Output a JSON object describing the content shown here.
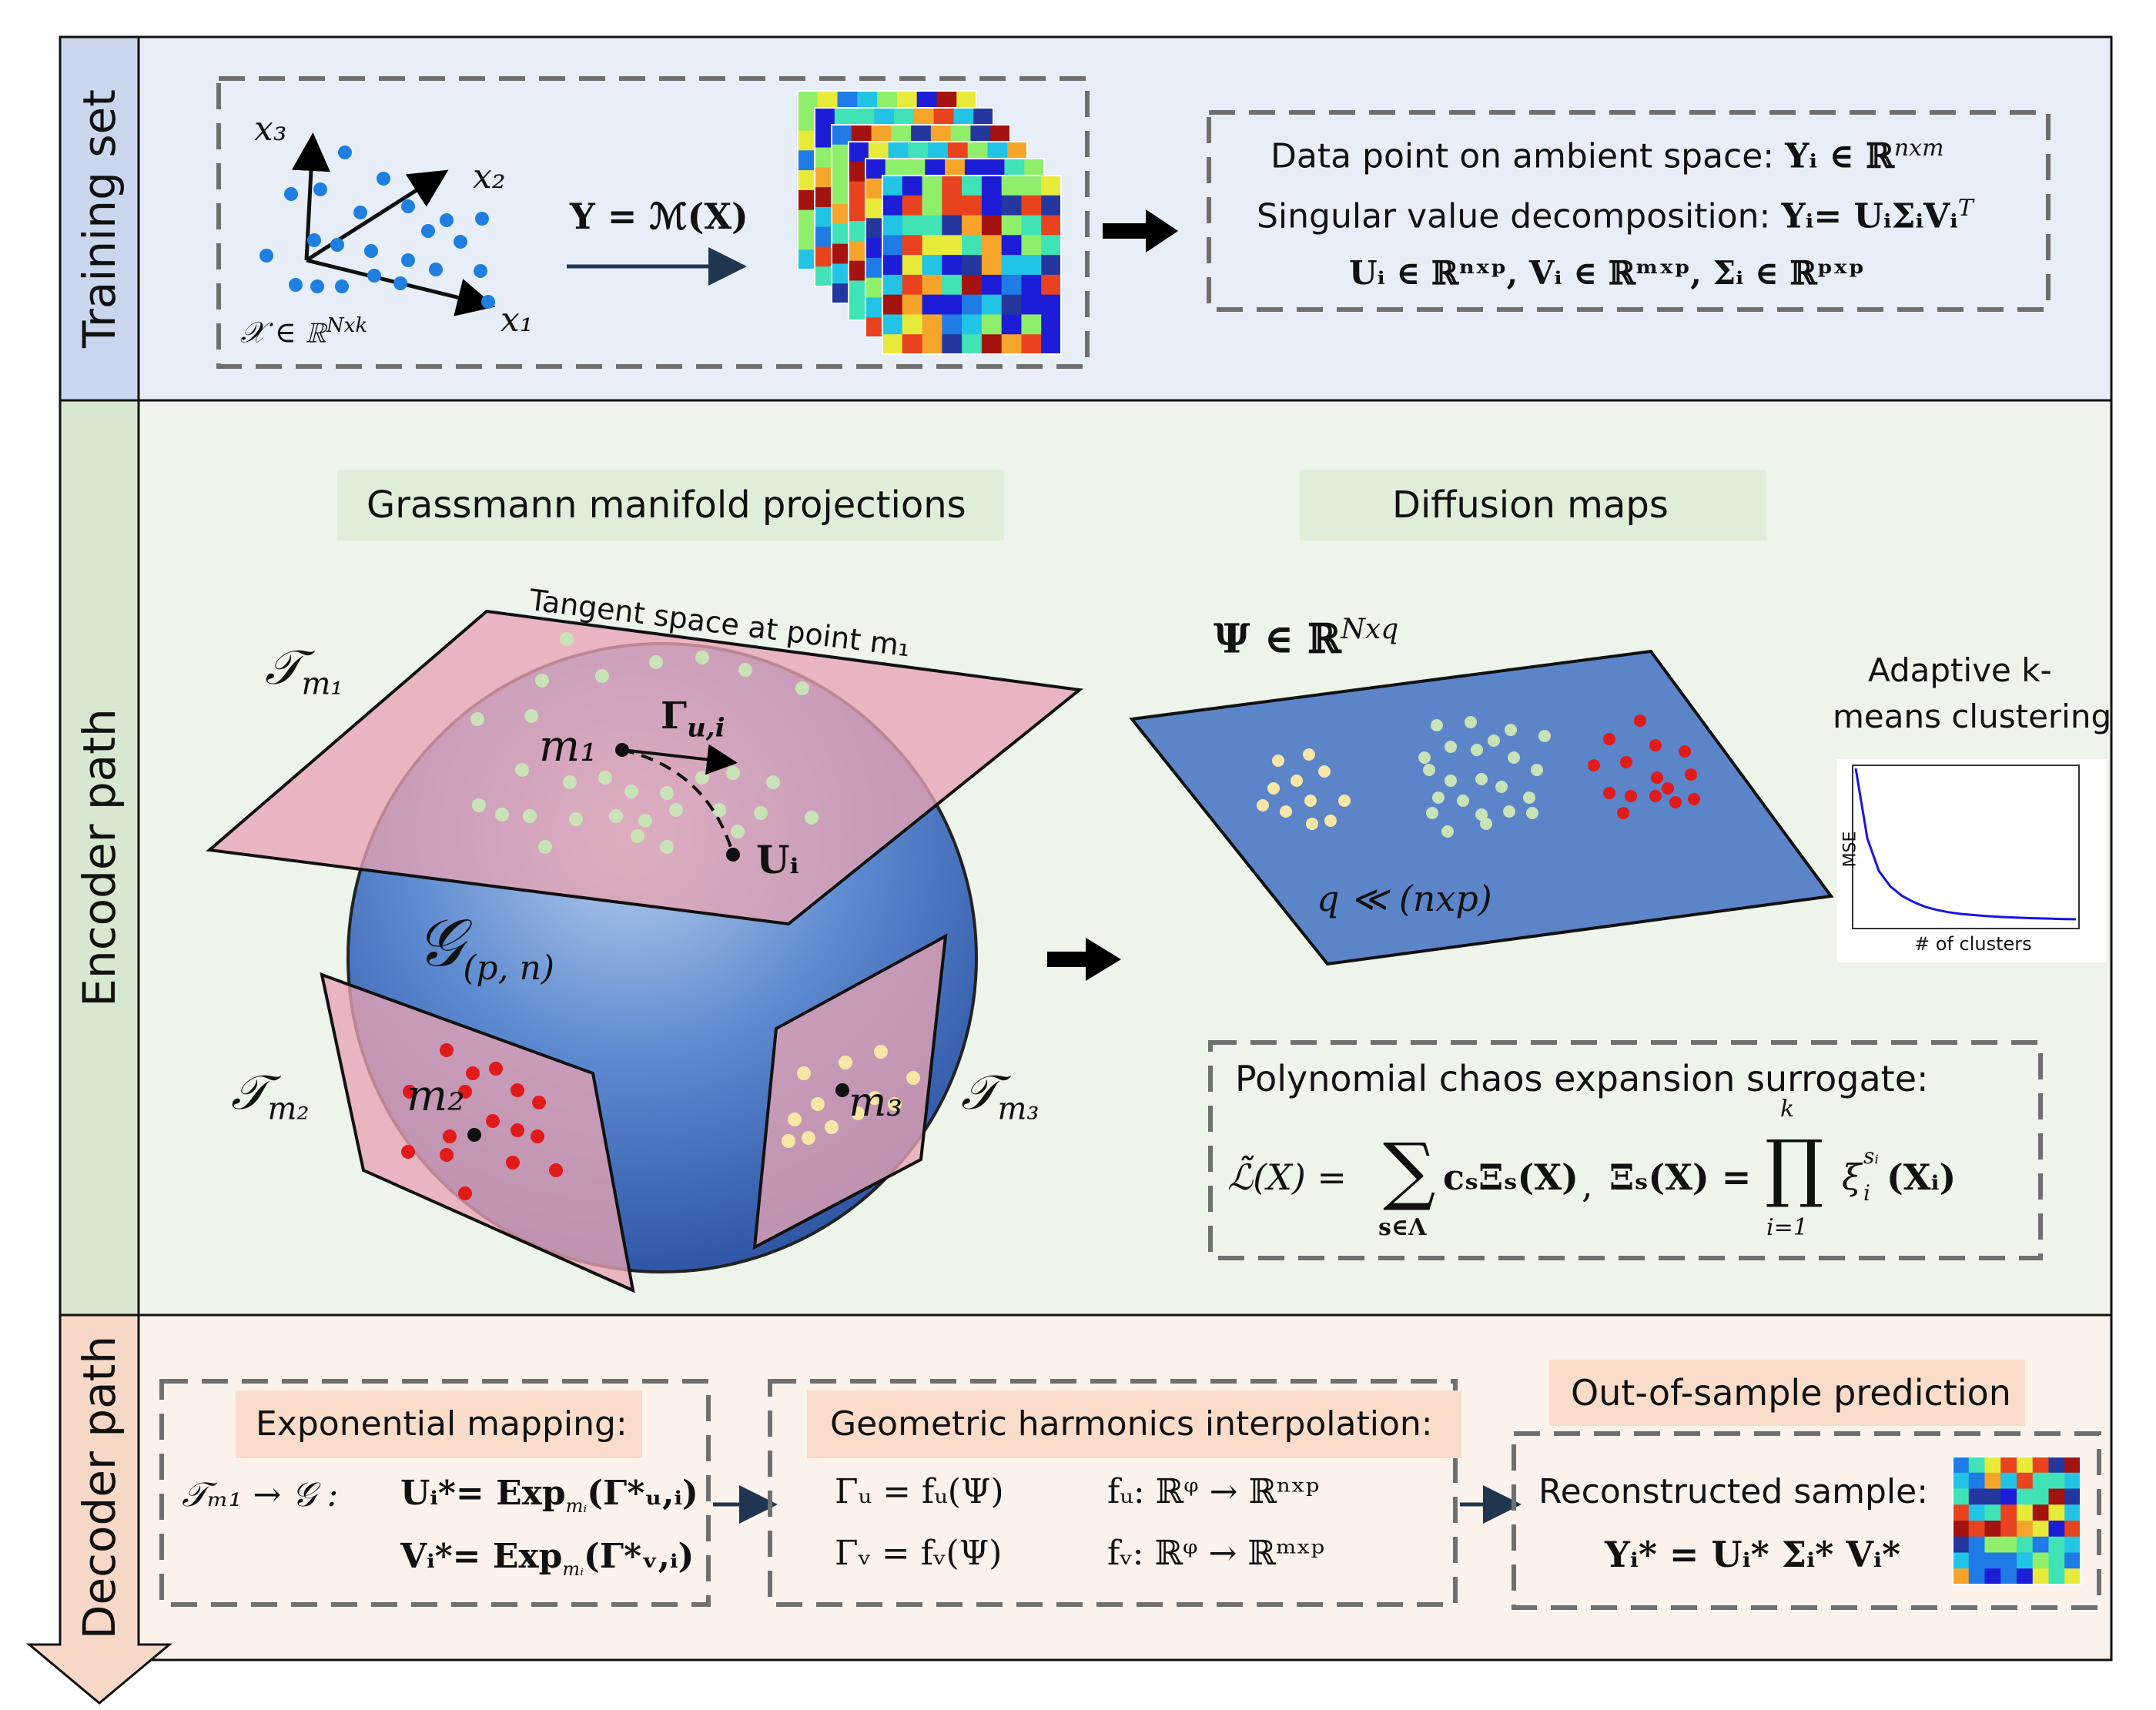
{
  "sections": {
    "training": {
      "label": "Training set",
      "axes": {
        "x3": "x₃",
        "x2": "x₂",
        "x1": "x₁"
      },
      "domain": "𝒳 ∈ ℝ",
      "domain_sup": "Nxk",
      "mapping": "Y = ℳ(X)",
      "svd_line1": "Data point on ambient space:",
      "svd_line1_math": "Yᵢ ∈ ℝ",
      "svd_line1_sup": "nxm",
      "svd_line2": "Singular value decomposition:",
      "svd_line2_math": "Yᵢ= UᵢΣᵢVᵢ",
      "svd_line2_sup": "T",
      "svd_line3": "Uᵢ ∈ ℝⁿˣᵖ, Vᵢ ∈ ℝᵐˣᵖ, Σᵢ ∈ ℝᵖˣᵖ"
    },
    "encoder": {
      "label": "Encoder path",
      "grassmann_title": "Grassmann manifold projections",
      "diffusion_title": "Diffusion maps",
      "tangent_caption": "Tangent space at point m₁",
      "tm1": "𝒯",
      "tm1_sub": "m₁",
      "tm2_sub": "m₂",
      "tm3_sub": "m₃",
      "m1": "m₁",
      "m2": "m₂",
      "m3": "m₃",
      "gamma": "Γ",
      "gamma_sub": "u,i",
      "Ui": "Uᵢ",
      "G": "𝒢",
      "G_sub": "(p, n)",
      "psi": "Ψ ∈ ℝ",
      "psi_sup": "Nxq",
      "q_rel": "q  ≪ (nxp)",
      "kmeans_title_1": "Adaptive k-",
      "kmeans_title_2": "means clustering",
      "kmeans_ylabel": "MSE",
      "kmeans_xlabel": "# of clusters",
      "pce_title": "Polynomial chaos expansion surrogate:",
      "pce_lhs": "ℒ̃(X) =",
      "pce_sum": "∑",
      "pce_sum_sub": "s∈Λ",
      "pce_term": "cₛΞₛ(X)",
      "pce_comma": ",",
      "pce_xi": "Ξₛ(X) =",
      "pce_prod": "∏",
      "pce_prod_top": "k",
      "pce_prod_bot": "i=1",
      "pce_factor": "ξ",
      "pce_factor_sup": "sᵢ",
      "pce_factor_sub": "i",
      "pce_factor_arg": "(Xᵢ)"
    },
    "decoder": {
      "label": "Decoder path",
      "exp_title": "Exponential mapping:",
      "exp_prefix": "𝒯ₘ₁ → 𝒢 :",
      "exp_u": "Uᵢ*= Exp",
      "exp_u_arg": "(Γ*ᵤ,ᵢ)",
      "exp_v": "Vᵢ*= Exp",
      "exp_v_arg": "(Γ*ᵥ,ᵢ)",
      "exp_sub": "mᵢ",
      "gh_title": "Geometric harmonics interpolation:",
      "gh_u": "Γᵤ = fᵤ(Ψ)",
      "gh_v": "Γᵥ = fᵥ(Ψ)",
      "gh_fu": "fᵤ: ℝᵠ → ℝⁿˣᵖ",
      "gh_fv": "fᵥ: ℝᵠ → ℝᵐˣᵖ",
      "oos_title": "Out-of-sample prediction",
      "oos_line1": "Reconstructed sample:",
      "oos_line2": "Yᵢ* = Uᵢ* Σᵢ* Vᵢ*"
    }
  },
  "colors": {
    "training_bg": "#e8eef8",
    "encoder_bg": "#edf4ea",
    "decoder_bg": "#fcf2ec",
    "training_tab": "#c9d6ee",
    "encoder_tab": "#d7e7d0",
    "decoder_tab": "#f7d8c6",
    "plane_pink": "#e8a3b3",
    "sphere_blue": "#3e6fc4",
    "diffusion_plane": "#5c84c9",
    "dot_blue": "#1e7fe0",
    "dot_green": "#c9e3b7",
    "dot_red": "#e11a1a",
    "dot_yellow": "#f7e6a6"
  },
  "chart_data": {
    "type": "line",
    "title": "Adaptive k-means clustering",
    "xlabel": "# of clusters",
    "ylabel": "MSE",
    "series": [
      {
        "values": [
          1.0,
          0.55,
          0.34,
          0.24,
          0.18,
          0.14,
          0.11,
          0.09,
          0.075,
          0.065,
          0.058,
          0.052,
          0.047,
          0.043,
          0.04,
          0.037,
          0.035,
          0.033,
          0.031,
          0.03
        ]
      }
    ],
    "grid": false,
    "axis_ticks": false
  }
}
